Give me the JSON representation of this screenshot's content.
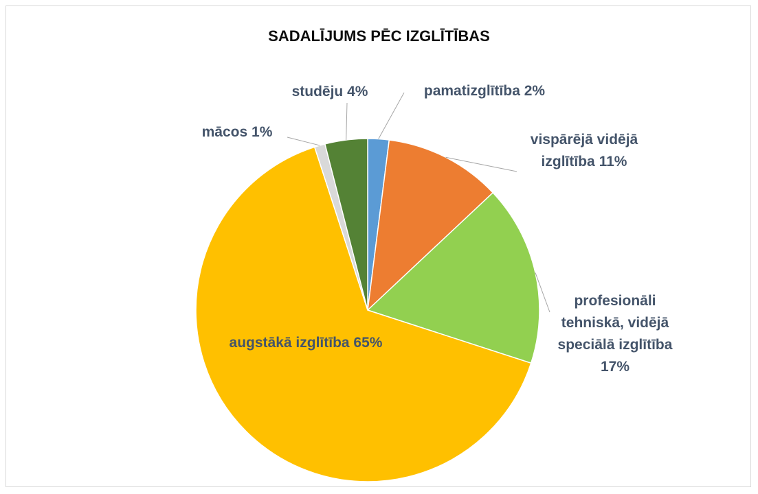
{
  "chart_data": {
    "type": "pie",
    "title": "SADALĪJUMS PĒC IZGLĪTĪBAS",
    "categories": [
      "pamatizglītība",
      "vispārējā vidējā izglītība",
      "profesionāli tehniskā, vidējā speciālā izglītība",
      "augstākā izglītība",
      "mācos",
      "studēju"
    ],
    "values": [
      2,
      11,
      17,
      65,
      1,
      4
    ],
    "value_labels": [
      "2%",
      "11%",
      "17%",
      "65%",
      "1%",
      "4%"
    ],
    "colors": [
      "#5b9bd5",
      "#ed7d31",
      "#92d050",
      "#ffc000",
      "#d9d9d9",
      "#548235"
    ]
  }
}
